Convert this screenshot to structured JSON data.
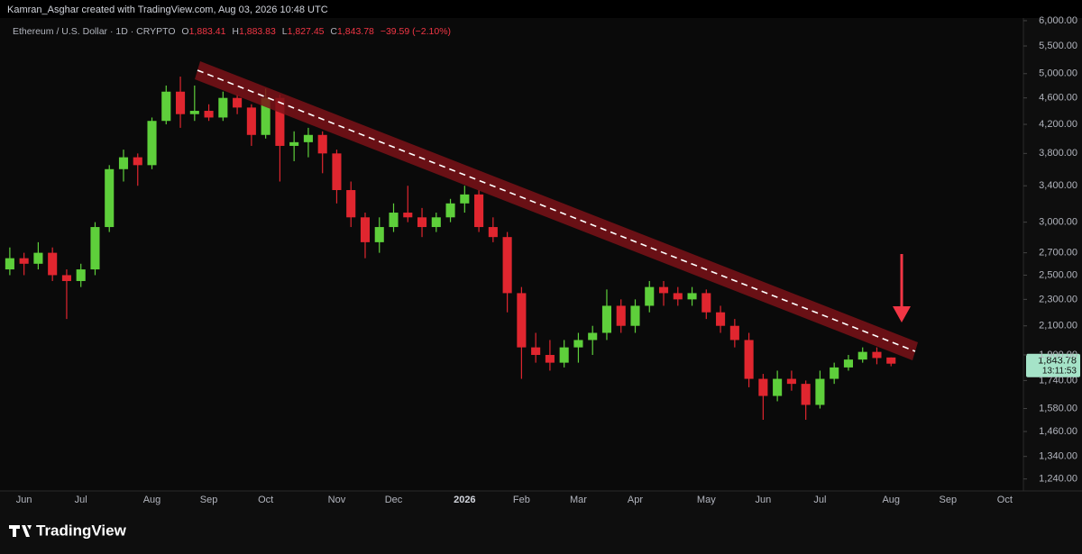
{
  "header": {
    "attribution": "Kamran_Asghar created with TradingView.com, Aug 03, 2026 10:48 UTC",
    "symbol": "Ethereum / U.S. Dollar · 1D · CRYPTO",
    "ohlc": [
      {
        "label": "O",
        "value": "1,883.41"
      },
      {
        "label": "H",
        "value": "1,883.83"
      },
      {
        "label": "L",
        "value": "1,827.45"
      },
      {
        "label": "C",
        "value": "1,843.78"
      }
    ],
    "change": "−39.59 (−2.10%)"
  },
  "price_tag": {
    "price": "1,843.78",
    "countdown": "13:11:53"
  },
  "footer": {
    "logo": "TradingView"
  },
  "chart_data": {
    "type": "candlestick",
    "log_scale": true,
    "up_color": "#5ecf3b",
    "down_color": "#e0262f",
    "categories": [
      null,
      "Jun",
      null,
      null,
      null,
      "Jul",
      null,
      null,
      null,
      null,
      "Aug",
      null,
      null,
      null,
      "Sep",
      null,
      null,
      null,
      "Oct",
      null,
      null,
      null,
      null,
      "Nov",
      null,
      null,
      null,
      "Dec",
      null,
      null,
      null,
      null,
      "2026",
      null,
      null,
      null,
      "Feb",
      null,
      null,
      null,
      "Mar",
      null,
      null,
      null,
      "Apr",
      null,
      null,
      null,
      null,
      "May",
      null,
      null,
      null,
      "Jun",
      null,
      null,
      null,
      "Jul",
      null,
      null,
      null,
      null,
      "Aug",
      null,
      null,
      null,
      "Sep",
      null,
      null,
      null,
      "Oct",
      null
    ],
    "open": [
      2550,
      2650,
      2600,
      2700,
      2500,
      2450,
      2550,
      2950,
      3600,
      3750,
      3650,
      4250,
      4700,
      4350,
      4400,
      4300,
      4600,
      4450,
      4050,
      4600,
      3900,
      3950,
      4050,
      3800,
      3350,
      3050,
      2800,
      2950,
      3100,
      3050,
      2950,
      3050,
      3200,
      3300,
      2950,
      2850,
      2350,
      1950,
      1900,
      1850,
      1950,
      2000,
      2050,
      2250,
      2100,
      2250,
      2400,
      2350,
      2300,
      2350,
      2200,
      2100,
      2000,
      1750,
      1650,
      1750,
      1720,
      1600,
      1750,
      1820,
      1870,
      1920,
      1883.41,
      null,
      null,
      null,
      null,
      null,
      null,
      null,
      null,
      null
    ],
    "high": [
      2750,
      2700,
      2800,
      2750,
      2550,
      2600,
      3000,
      3650,
      3850,
      3800,
      4300,
      4800,
      4950,
      4800,
      4500,
      4700,
      4650,
      4500,
      4750,
      4650,
      4100,
      4150,
      4100,
      3850,
      3450,
      3100,
      3050,
      3200,
      3400,
      3150,
      3100,
      3250,
      3400,
      3350,
      3050,
      2900,
      2400,
      2050,
      2000,
      2000,
      2050,
      2100,
      2380,
      2300,
      2300,
      2450,
      2450,
      2400,
      2400,
      2380,
      2250,
      2150,
      2050,
      1780,
      1800,
      1800,
      1740,
      1800,
      1850,
      1900,
      1950,
      1950,
      1883.83,
      null,
      null,
      null,
      null,
      null,
      null,
      null,
      null,
      null
    ],
    "low": [
      2500,
      2500,
      2550,
      2450,
      2150,
      2400,
      2500,
      2900,
      3450,
      3400,
      3600,
      4200,
      4150,
      4250,
      4250,
      4250,
      4350,
      3900,
      4000,
      3450,
      3700,
      3750,
      3550,
      3200,
      2950,
      2650,
      2700,
      2900,
      3000,
      2850,
      2900,
      3000,
      3100,
      2900,
      2800,
      2200,
      1750,
      1850,
      1800,
      1820,
      1850,
      1900,
      2000,
      2050,
      2050,
      2200,
      2250,
      2250,
      2250,
      2150,
      2050,
      1950,
      1700,
      1520,
      1620,
      1680,
      1520,
      1580,
      1720,
      1800,
      1850,
      1840,
      1827.45,
      null,
      null,
      null,
      null,
      null,
      null,
      null,
      null,
      null
    ],
    "close": [
      2650,
      2600,
      2700,
      2500,
      2450,
      2550,
      2950,
      3600,
      3750,
      3650,
      4250,
      4700,
      4350,
      4400,
      4300,
      4600,
      4450,
      4050,
      4600,
      3900,
      3950,
      4050,
      3800,
      3350,
      3050,
      2800,
      2950,
      3100,
      3050,
      2950,
      3050,
      3200,
      3300,
      2950,
      2850,
      2350,
      1950,
      1900,
      1850,
      1950,
      2000,
      2050,
      2250,
      2100,
      2250,
      2400,
      2350,
      2300,
      2350,
      2200,
      2100,
      2000,
      1750,
      1650,
      1750,
      1720,
      1600,
      1750,
      1820,
      1870,
      1920,
      1880,
      1843.78,
      null,
      null,
      null,
      null,
      null,
      null,
      null,
      null,
      null
    ],
    "ylim": [
      1190,
      6055
    ],
    "yticks": [
      {
        "value": 1240,
        "label": "1,240.00"
      },
      {
        "value": 1340,
        "label": "1,340.00"
      },
      {
        "value": 1460,
        "label": "1,460.00"
      },
      {
        "value": 1580,
        "label": "1,580.00"
      },
      {
        "value": 1740,
        "label": "1,740.00"
      },
      {
        "value": 1900,
        "label": "1,900.00"
      },
      {
        "value": 2100,
        "label": "2,100.00"
      },
      {
        "value": 2300,
        "label": "2,300.00"
      },
      {
        "value": 2500,
        "label": "2,500.00"
      },
      {
        "value": 2700,
        "label": "2,700.00"
      },
      {
        "value": 3000,
        "label": "3,000.00"
      },
      {
        "value": 3400,
        "label": "3,400.00"
      },
      {
        "value": 3800,
        "label": "3,800.00"
      },
      {
        "value": 4200,
        "label": "4,200.00"
      },
      {
        "value": 4600,
        "label": "4,600.00"
      },
      {
        "value": 5000,
        "label": "5,000.00"
      },
      {
        "value": 5500,
        "label": "5,500.00"
      },
      {
        "value": 6000,
        "label": "6,000.00"
      }
    ]
  }
}
